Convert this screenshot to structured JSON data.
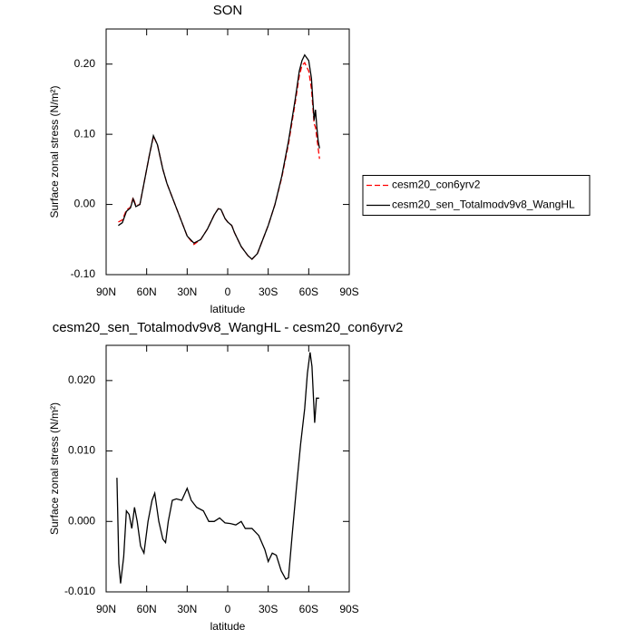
{
  "chart_data": [
    {
      "type": "line",
      "title": "SON",
      "xlabel": "latitude",
      "ylabel": "Surface zonal stress (N/m²)",
      "xlim": [
        90,
        -90
      ],
      "xticks": [
        {
          "value": 90,
          "label": "90N"
        },
        {
          "value": 60,
          "label": "60N"
        },
        {
          "value": 30,
          "label": "30N"
        },
        0,
        {
          "value": -30,
          "label": "30S"
        },
        {
          "value": -60,
          "label": "60S"
        },
        {
          "value": -90,
          "label": "90S"
        }
      ],
      "ylim": [
        -0.1,
        0.25
      ],
      "yticks": [
        {
          "value": -0.1,
          "label": "-0.10"
        },
        {
          "value": 0,
          "label": "0.00"
        },
        {
          "value": 0.1,
          "label": "0.10"
        },
        {
          "value": 0.2,
          "label": "0.20"
        }
      ],
      "legend": "right",
      "x": [
        81,
        78,
        75,
        72,
        70,
        68,
        65,
        62,
        58,
        55,
        52,
        48,
        45,
        40,
        35,
        30,
        25,
        20,
        15,
        10,
        7,
        5,
        2,
        0,
        -3,
        -5,
        -10,
        -15,
        -18,
        -22,
        -25,
        -30,
        -35,
        -40,
        -45,
        -50,
        -53,
        -55,
        -57,
        -60,
        -62,
        -63,
        -64,
        -65,
        -66,
        -67,
        -68
      ],
      "series": [
        {
          "name": "cesm20_con6yrv2",
          "color": "#ff0000",
          "line_style": "dashed",
          "values": [
            -0.025,
            -0.022,
            -0.008,
            -0.004,
            0.01,
            -0.002,
            0.0,
            0.03,
            0.07,
            0.097,
            0.085,
            0.05,
            0.03,
            0.005,
            -0.02,
            -0.045,
            -0.057,
            -0.05,
            -0.035,
            -0.015,
            -0.006,
            -0.007,
            -0.02,
            -0.025,
            -0.03,
            -0.04,
            -0.06,
            -0.073,
            -0.078,
            -0.07,
            -0.055,
            -0.03,
            0.0,
            0.038,
            0.086,
            0.145,
            0.183,
            0.198,
            0.202,
            0.19,
            0.165,
            0.14,
            0.115,
            0.11,
            0.095,
            0.08,
            0.065
          ]
        },
        {
          "name": "cesm20_sen_Totalmodv9v8_WangHL",
          "color": "#000000",
          "line_style": "solid",
          "values": [
            -0.03,
            -0.026,
            -0.01,
            -0.005,
            0.008,
            -0.003,
            0.0,
            0.03,
            0.07,
            0.098,
            0.085,
            0.05,
            0.03,
            0.005,
            -0.02,
            -0.045,
            -0.055,
            -0.05,
            -0.035,
            -0.015,
            -0.006,
            -0.007,
            -0.02,
            -0.025,
            -0.03,
            -0.04,
            -0.06,
            -0.073,
            -0.078,
            -0.07,
            -0.055,
            -0.03,
            0.0,
            0.04,
            0.09,
            0.15,
            0.19,
            0.205,
            0.213,
            0.205,
            0.18,
            0.15,
            0.12,
            0.135,
            0.11,
            0.09,
            0.08
          ]
        }
      ]
    },
    {
      "type": "line",
      "title": "cesm20_sen_Totalmodv9v8_WangHL - cesm20_con6yrv2",
      "xlabel": "latitude",
      "ylabel": "Surface zonal stress (N/m²)",
      "xlim": [
        90,
        -90
      ],
      "xticks": [
        {
          "value": 90,
          "label": "90N"
        },
        {
          "value": 60,
          "label": "60N"
        },
        {
          "value": 30,
          "label": "30N"
        },
        0,
        {
          "value": -30,
          "label": "30S"
        },
        {
          "value": -60,
          "label": "60S"
        },
        {
          "value": -90,
          "label": "90S"
        }
      ],
      "ylim": [
        -0.01,
        0.025
      ],
      "yticks": [
        {
          "value": -0.01,
          "label": "-0.010"
        },
        {
          "value": 0,
          "label": "0.000"
        },
        {
          "value": 0.01,
          "label": "0.010"
        },
        {
          "value": 0.02,
          "label": "0.020"
        }
      ],
      "x": [
        82,
        80.6,
        79.3,
        77,
        75,
        73,
        71,
        69,
        67,
        64.5,
        62,
        59,
        56,
        54,
        51,
        48,
        46,
        44,
        41,
        38,
        34,
        30,
        27,
        23,
        18,
        14,
        10,
        6,
        2,
        -2,
        -6,
        -10,
        -13,
        -18,
        -23,
        -27.5,
        -30,
        -33,
        -36,
        -39.6,
        -43,
        -45,
        -47.7,
        -51,
        -54,
        -57,
        -59,
        -61,
        -62.4,
        -64.4,
        -65.7,
        -67.7
      ],
      "series": [
        {
          "color": "#000000",
          "line_style": "solid",
          "values": [
            0.0062,
            -0.006,
            -0.0088,
            -0.005,
            0.0015,
            0.001,
            -0.001,
            0.002,
            0.0,
            -0.0035,
            -0.0045,
            0.0,
            0.003,
            0.004,
            0.0,
            -0.0025,
            -0.003,
            0.0,
            0.003,
            0.0032,
            0.003,
            0.0047,
            0.003,
            0.002,
            0.0015,
            0.0,
            0.0,
            0.0005,
            -0.0002,
            -0.0003,
            -0.0005,
            0.0,
            -0.001,
            -0.001,
            -0.002,
            -0.004,
            -0.0057,
            -0.0045,
            -0.0048,
            -0.007,
            -0.0082,
            -0.008,
            -0.002,
            0.005,
            0.011,
            0.016,
            0.021,
            0.024,
            0.022,
            0.014,
            0.0175,
            0.0175
          ]
        }
      ]
    }
  ]
}
